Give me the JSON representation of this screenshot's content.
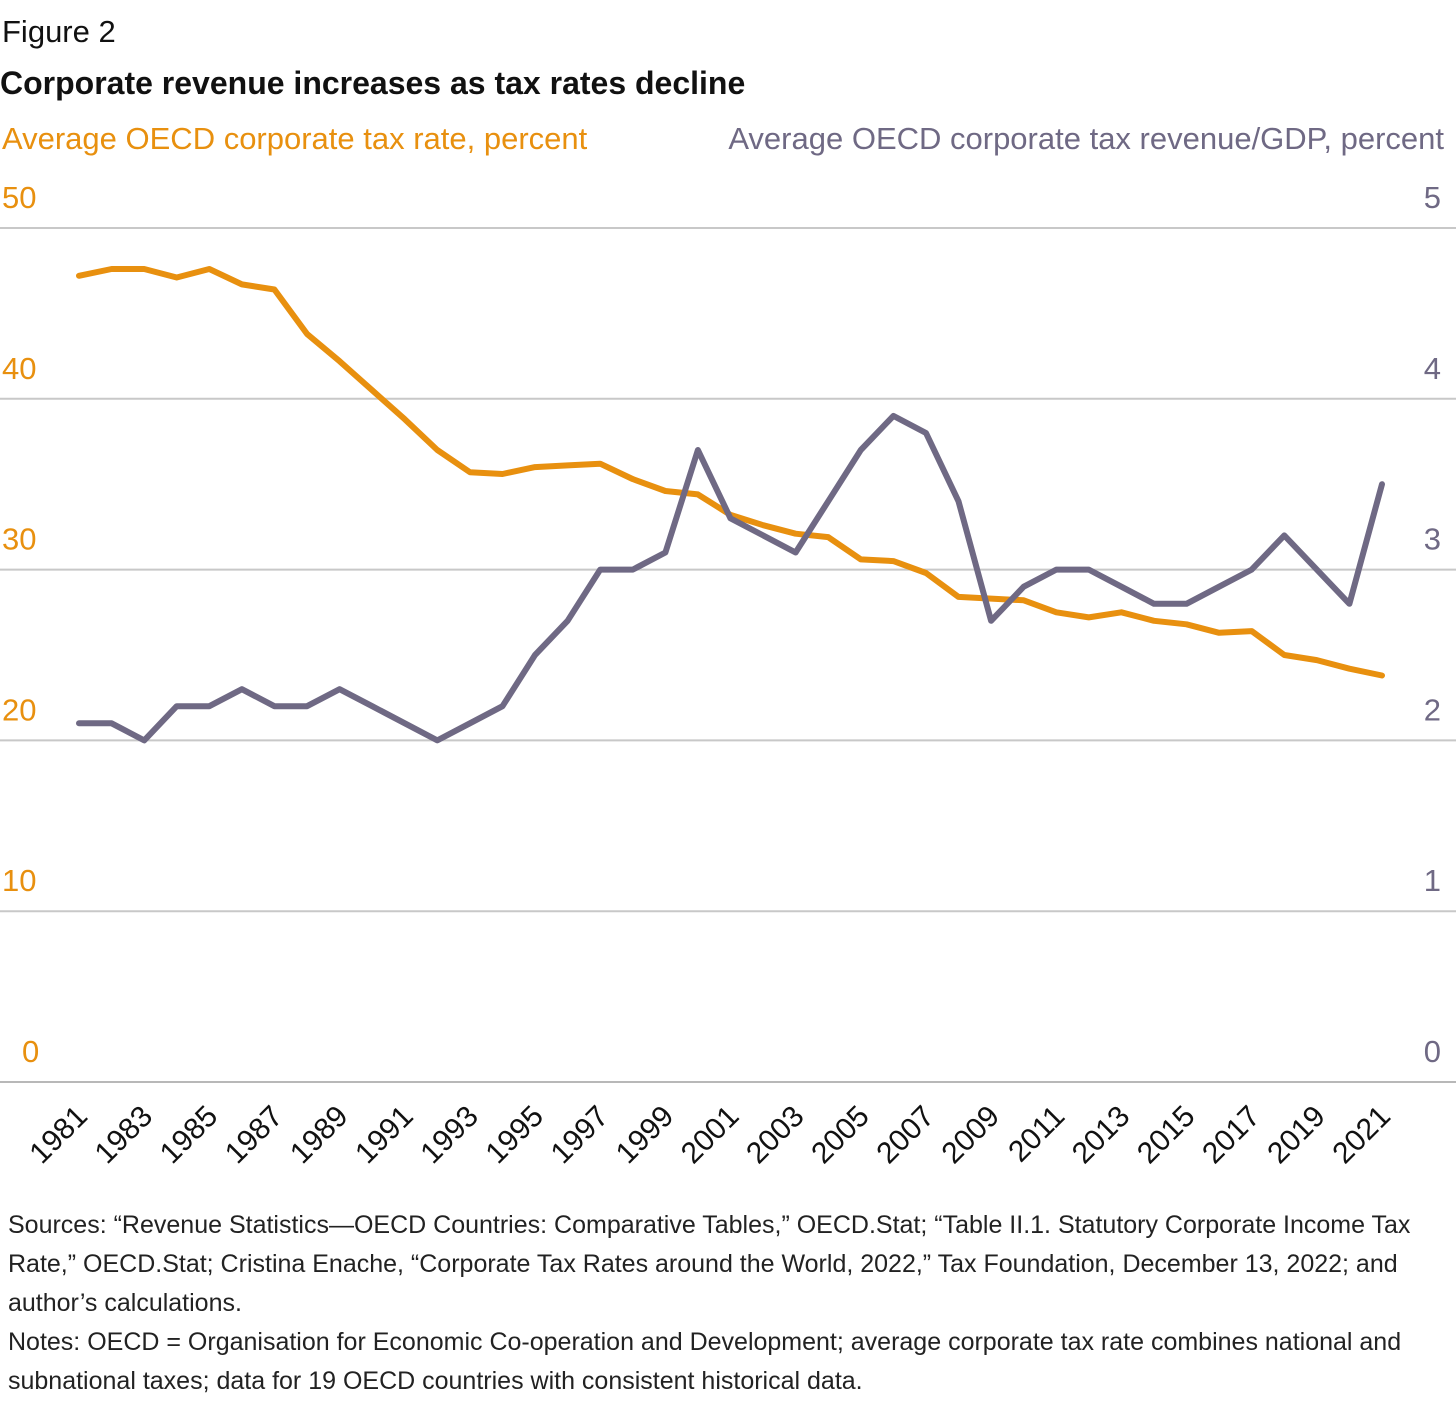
{
  "figure_label": "Figure 2",
  "chart_data": {
    "type": "line",
    "title": "Corporate revenue increases as tax rates decline",
    "y_left": {
      "label": "Average OECD corporate tax rate, percent",
      "range": [
        0,
        50
      ],
      "ticks": [
        "0",
        "10",
        "20",
        "30",
        "40",
        "50"
      ],
      "color": "#e8900f"
    },
    "y_right": {
      "label": "Average OECD corporate tax revenue/GDP, percent",
      "range": [
        0,
        5
      ],
      "ticks": [
        "0",
        "1",
        "2",
        "3",
        "4",
        "5"
      ],
      "color": "#6f6984"
    },
    "x": [
      1981,
      1982,
      1983,
      1984,
      1985,
      1986,
      1987,
      1988,
      1989,
      1990,
      1991,
      1992,
      1993,
      1994,
      1995,
      1996,
      1997,
      1998,
      1999,
      2000,
      2001,
      2002,
      2003,
      2004,
      2005,
      2006,
      2007,
      2008,
      2009,
      2010,
      2011,
      2012,
      2013,
      2014,
      2015,
      2016,
      2017,
      2018,
      2019,
      2020,
      2021
    ],
    "x_ticks": [
      "1981",
      "1983",
      "1985",
      "1987",
      "1989",
      "1991",
      "1993",
      "1995",
      "1997",
      "1999",
      "2001",
      "2003",
      "2005",
      "2007",
      "2009",
      "2011",
      "2013",
      "2015",
      "2017",
      "2019",
      "2021"
    ],
    "grid": true,
    "series": [
      {
        "axis": "left",
        "color": "#e8900f",
        "values": [
          47.2,
          47.6,
          47.6,
          47.1,
          47.6,
          46.7,
          46.4,
          43.8,
          42.2,
          40.5,
          38.8,
          37.0,
          35.7,
          35.6,
          36.0,
          36.1,
          36.2,
          35.3,
          34.6,
          34.4,
          33.2,
          32.6,
          32.1,
          31.9,
          30.6,
          30.5,
          29.8,
          28.4,
          28.3,
          28.2,
          27.5,
          27.2,
          27.5,
          27.0,
          26.8,
          26.3,
          26.4,
          25.0,
          24.7,
          24.2,
          23.8
        ]
      },
      {
        "axis": "right",
        "color": "#6f6984",
        "values": [
          2.1,
          2.1,
          2.0,
          2.2,
          2.2,
          2.3,
          2.2,
          2.2,
          2.3,
          2.2,
          2.1,
          2.0,
          2.1,
          2.2,
          2.5,
          2.7,
          3.0,
          3.0,
          3.1,
          3.7,
          3.3,
          3.2,
          3.1,
          3.4,
          3.7,
          3.9,
          3.8,
          3.4,
          2.7,
          2.9,
          3.0,
          3.0,
          2.9,
          2.8,
          2.8,
          2.9,
          3.0,
          3.2,
          3.0,
          2.8,
          3.5
        ]
      }
    ]
  },
  "notes": {
    "sources": "Sources: “Revenue Statistics—OECD Countries: Comparative Tables,” OECD.Stat; “Table II.1. Statutory Corporate Income Tax Rate,” OECD.Stat; Cristina Enache, “Corporate Tax Rates around the World, 2022,” Tax Foundation, December 13, 2022; and author’s calculations.",
    "notes": "Notes: OECD = Organisation for Economic Co-operation and Development; average corporate tax rate combines national and subnational taxes; data for 19 OECD countries with consistent historical data."
  }
}
